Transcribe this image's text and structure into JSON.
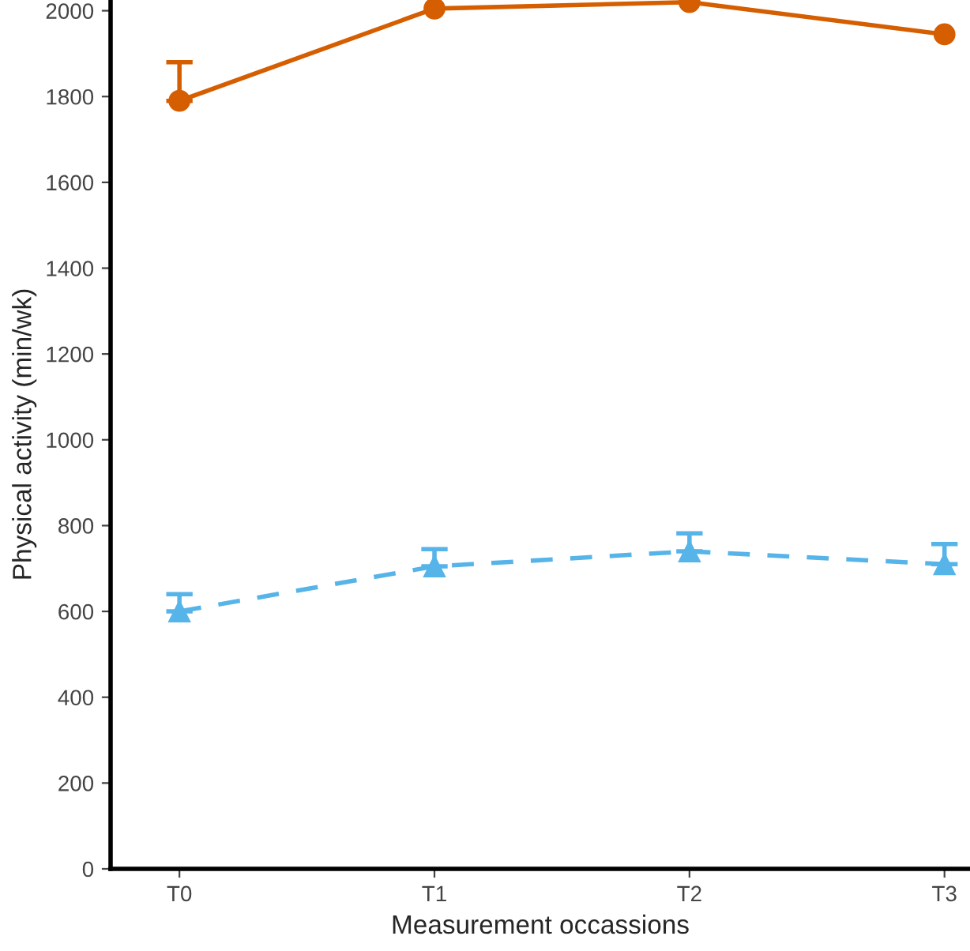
{
  "chart_data": {
    "type": "line",
    "xlabel": "Measurement occassions",
    "ylabel": "Physical activity (min/wk)",
    "categories": [
      "T0",
      "T1",
      "T2",
      "T3"
    ],
    "series": [
      {
        "color": "#d55e00",
        "marker": "circle",
        "line_style": "solid",
        "values": [
          1790,
          2005,
          2020,
          1945
        ],
        "errors": [
          [
            1790,
            1880
          ],
          null,
          null,
          null
        ]
      },
      {
        "color": "#56b4e9",
        "marker": "triangle",
        "line_style": "dashed",
        "values": [
          600,
          705,
          740,
          710
        ],
        "errors": [
          [
            600,
            640
          ],
          [
            705,
            745
          ],
          [
            740,
            782
          ],
          [
            710,
            757
          ]
        ]
      }
    ],
    "ylim": [
      0,
      2025
    ],
    "yticks": [
      0,
      200,
      400,
      600,
      800,
      1000,
      1200,
      1400,
      1600,
      1800,
      2000
    ],
    "grid": false,
    "legend": false
  }
}
